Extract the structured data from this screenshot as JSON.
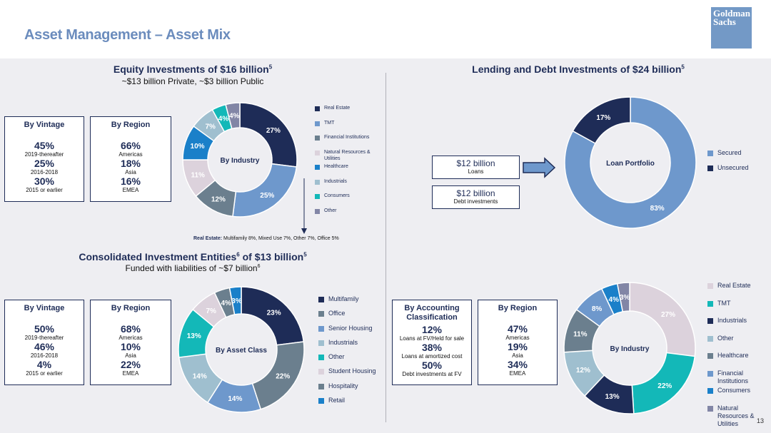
{
  "header": {
    "title": "Asset Management – Asset Mix",
    "logo_line1": "Goldman",
    "logo_line2": "Sachs"
  },
  "colors": {
    "navy": "#1e2c57",
    "mid_blue": "#6e98cc",
    "slate": "#6b7f8e",
    "pink": "#dcd2dc",
    "bright_blue": "#1a80c9",
    "light_blue": "#9fbfcf",
    "teal": "#13b8b8",
    "grey_purple": "#8286a6",
    "teal2": "#1fb8bd"
  },
  "equity": {
    "title": "Equity Investments of $16 billion",
    "title_sup": "5",
    "subtitle": "~$13 billion Private, ~$3 billion Public",
    "vintage": {
      "title": "By Vintage",
      "items": [
        {
          "value": "45%",
          "label": "2019-thereafter"
        },
        {
          "value": "25%",
          "label": "2016-2018"
        },
        {
          "value": "30%",
          "label": "2015 or earlier"
        }
      ]
    },
    "region": {
      "title": "By Region",
      "items": [
        {
          "value": "66%",
          "label": "Americas"
        },
        {
          "value": "18%",
          "label": "Asia"
        },
        {
          "value": "16%",
          "label": "EMEA"
        }
      ]
    },
    "note_label": "Real Estate:",
    "note_text": " Multifamily 8%, Mixed Use 7%, Other 7%, Office 5%"
  },
  "consolidated": {
    "title": "Consolidated Investment Entities",
    "title_sup1": "6",
    "title_mid": " of $13 billion",
    "title_sup2": "5",
    "subtitle": "Funded with liabilities of ~$7 billion",
    "subtitle_sup": "6",
    "vintage": {
      "title": "By Vintage",
      "items": [
        {
          "value": "50%",
          "label": "2019-thereafter"
        },
        {
          "value": "46%",
          "label": "2016-2018"
        },
        {
          "value": "4%",
          "label": "2015 or earlier"
        }
      ]
    },
    "region": {
      "title": "By Region",
      "items": [
        {
          "value": "68%",
          "label": "Americas"
        },
        {
          "value": "10%",
          "label": "Asia"
        },
        {
          "value": "22%",
          "label": "EMEA"
        }
      ]
    }
  },
  "lending": {
    "title": "Lending and Debt Investments of $24 billion",
    "title_sup": "5",
    "loans": {
      "value": "$12 billion",
      "label": "Loans"
    },
    "debt": {
      "value": "$12 billion",
      "label": "Debt investments"
    },
    "accounting": {
      "title": "By Accounting Classification",
      "items": [
        {
          "value": "12%",
          "label": "Loans at FV/Held for sale"
        },
        {
          "value": "38%",
          "label": "Loans at amortized cost"
        },
        {
          "value": "50%",
          "label": "Debt investments at FV"
        }
      ]
    },
    "region": {
      "title": "By Region",
      "items": [
        {
          "value": "47%",
          "label": "Americas"
        },
        {
          "value": "19%",
          "label": "Asia"
        },
        {
          "value": "34%",
          "label": "EMEA"
        }
      ]
    }
  },
  "page_number": "13",
  "chart_data": [
    {
      "type": "pie",
      "id": "equity_industry",
      "center_label": "By Industry",
      "slices": [
        {
          "label": "Real Estate",
          "value": 27,
          "color": "#1e2c57"
        },
        {
          "label": "TMT",
          "value": 25,
          "color": "#6e98cc"
        },
        {
          "label": "Financial Institutions",
          "value": 12,
          "color": "#6b7f8e"
        },
        {
          "label": "Natural Resources & Utilities",
          "value": 11,
          "color": "#dcd2dc"
        },
        {
          "label": "Healthcare",
          "value": 10,
          "color": "#1a80c9"
        },
        {
          "label": "Industrials",
          "value": 7,
          "color": "#9fbfcf"
        },
        {
          "label": "Consumers",
          "value": 4,
          "color": "#13b8b8"
        },
        {
          "label": "Other",
          "value": 4,
          "color": "#8286a6"
        }
      ]
    },
    {
      "type": "pie",
      "id": "consolidated_asset_class",
      "center_label": "By Asset Class",
      "slices": [
        {
          "label": "Multifamily",
          "value": 23,
          "color": "#1e2c57"
        },
        {
          "label": "Office",
          "value": 22,
          "color": "#6b7f8e"
        },
        {
          "label": "Senior Housing",
          "value": 14,
          "color": "#6e98cc"
        },
        {
          "label": "Industrials",
          "value": 14,
          "color": "#9fbfcf"
        },
        {
          "label": "Other",
          "value": 13,
          "color": "#13b8b8"
        },
        {
          "label": "Student Housing",
          "value": 7,
          "color": "#dcd2dc"
        },
        {
          "label": "Hospitality",
          "value": 4,
          "color": "#6b7f8e"
        },
        {
          "label": "Retail",
          "value": 3,
          "color": "#1a80c9"
        }
      ]
    },
    {
      "type": "pie",
      "id": "loan_portfolio",
      "center_label": "Loan Portfolio",
      "slices": [
        {
          "label": "Secured",
          "value": 83,
          "color": "#6e98cc"
        },
        {
          "label": "Unsecured",
          "value": 17,
          "color": "#1e2c57"
        }
      ]
    },
    {
      "type": "pie",
      "id": "lending_industry",
      "center_label": "By Industry",
      "slices": [
        {
          "label": "Real Estate",
          "value": 27,
          "color": "#dcd2dc"
        },
        {
          "label": "TMT",
          "value": 22,
          "color": "#13b8b8"
        },
        {
          "label": "Industrials",
          "value": 13,
          "color": "#1e2c57"
        },
        {
          "label": "Other",
          "value": 12,
          "color": "#9fbfcf"
        },
        {
          "label": "Healthcare",
          "value": 11,
          "color": "#6b7f8e"
        },
        {
          "label": "Financial Institutions",
          "value": 8,
          "color": "#6e98cc"
        },
        {
          "label": "Consumers",
          "value": 4,
          "color": "#1a80c9"
        },
        {
          "label": "Natural Resources & Utilities",
          "value": 3,
          "color": "#8286a6"
        }
      ]
    }
  ]
}
